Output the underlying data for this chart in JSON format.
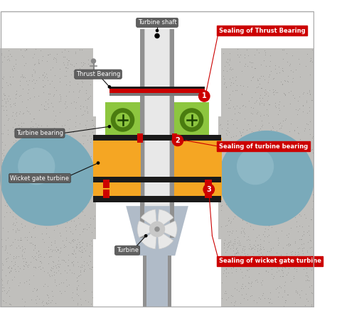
{
  "fig_width": 4.74,
  "fig_height": 4.48,
  "dpi": 100,
  "labels": {
    "turbine_shaft": "Turbine shaft",
    "thrust_bearing": "Thrust Bearing",
    "turbine_bearing": "Turbine bearing",
    "wicket_gate": "Wicket gate turbine",
    "turbine": "Turbine",
    "sealing_thrust": "Sealing of Thrust Bearing",
    "sealing_turbine": "Sealing of turbine bearing",
    "sealing_wicket": "Sealing of wicket gate turbine"
  },
  "colors": {
    "green_bearing": "#8dc63f",
    "green_dark": "#4a7c10",
    "orange_part": "#f5a623",
    "red_seal": "#cc0000",
    "dark_gray_label": "#606060",
    "black": "#000000",
    "white": "#ffffff",
    "blue_sphere": "#7aaaba",
    "sphere_light": "#a8ccd8",
    "concrete": "#c0bfbc",
    "concrete_dot": "#9a9996",
    "shaft_mid": "#c8c8c8",
    "shaft_dark": "#909090",
    "shaft_light": "#e8e8e8",
    "turbine_light": "#d0d8e0",
    "runner_gray": "#b0bbc8",
    "dark_bar": "#1a1a1a",
    "flange_dark": "#787878",
    "yellow_orange": "#f0b040"
  }
}
